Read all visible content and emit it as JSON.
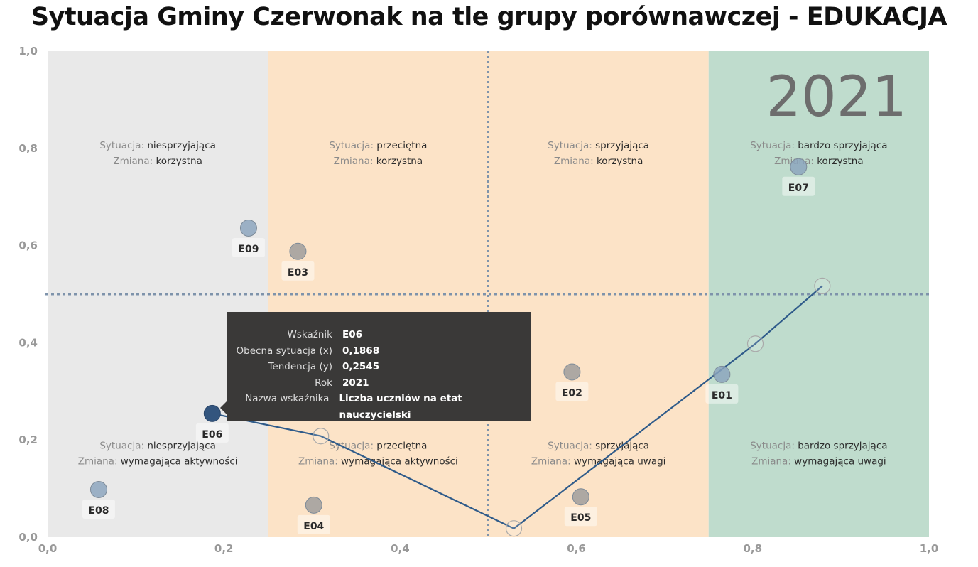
{
  "header": {
    "title": "Sytuacja Gminy Czerwonak na tle grupy porównawczej - EDUKACJA"
  },
  "colors": {
    "zone_unfavorable": "#e9e9e9",
    "zone_average": "#fce3c7",
    "zone_favorable": "#fce3c7",
    "zone_very_favorable": "#bfdccd",
    "line": "#2f5b8a",
    "dot_highlight": "#33557e",
    "dot_blue": "#8aa3bd",
    "dot_gray": "#9b9b9b",
    "divider": "#7e93ab",
    "tooltip_bg": "#3a3938"
  },
  "chart_data": {
    "type": "scatter",
    "title": "Sytuacja Gminy Czerwonak na tle grupy porównawczej - EDUKACJA",
    "xlabel": "",
    "ylabel": "",
    "xlim": [
      0,
      1
    ],
    "ylim": [
      0,
      1
    ],
    "x_ticks": [
      "0,0",
      "0,2",
      "0,4",
      "0,6",
      "0,8",
      "1,0"
    ],
    "y_ticks": [
      "0,0",
      "0,2",
      "0,4",
      "0,6",
      "0,8",
      "1,0"
    ],
    "grid": false,
    "year_label": "2021",
    "zone_bounds_x": [
      0,
      0.25,
      0.5,
      0.75,
      1.0
    ],
    "divider_x": 0.5,
    "divider_y": 0.5,
    "zones": [
      {
        "top": [
          "Sytuacja:",
          "niesprzyjająca",
          "Zmiana:",
          "korzystna"
        ],
        "bottom": [
          "Sytuacja:",
          "niesprzyjająca",
          "Zmiana:",
          "wymagająca aktywności"
        ]
      },
      {
        "top": [
          "Sytuacja:",
          "przeciętna",
          "Zmiana:",
          "korzystna"
        ],
        "bottom": [
          "Sytuacja:",
          "przeciętna",
          "Zmiana:",
          "wymagająca aktywności"
        ]
      },
      {
        "top": [
          "Sytuacja:",
          "sprzyjająca",
          "Zmiana:",
          "korzystna"
        ],
        "bottom": [
          "Sytuacja:",
          "sprzyjająca",
          "Zmiana:",
          "wymagająca uwagi"
        ]
      },
      {
        "top": [
          "Sytuacja:",
          "bardzo sprzyjająca",
          "Zmiana:",
          "korzystna"
        ],
        "bottom": [
          "Sytuacja:",
          "bardzo sprzyjająca",
          "Zmiana:",
          "wymagająca uwagi"
        ]
      }
    ],
    "points": [
      {
        "label": "E06",
        "x": 0.1868,
        "y": 0.2545,
        "style": "highlight"
      },
      {
        "label": "E09",
        "x": 0.228,
        "y": 0.636,
        "style": "blue"
      },
      {
        "label": "E03",
        "x": 0.284,
        "y": 0.588,
        "style": "gray"
      },
      {
        "label": "E08",
        "x": 0.058,
        "y": 0.098,
        "style": "blue"
      },
      {
        "label": "E04",
        "x": 0.302,
        "y": 0.066,
        "style": "gray"
      },
      {
        "label": "E02",
        "x": 0.595,
        "y": 0.34,
        "style": "gray"
      },
      {
        "label": "E05",
        "x": 0.605,
        "y": 0.083,
        "style": "gray"
      },
      {
        "label": "E01",
        "x": 0.765,
        "y": 0.335,
        "style": "blue"
      },
      {
        "label": "E07",
        "x": 0.852,
        "y": 0.762,
        "style": "blue"
      }
    ],
    "trend_line": [
      {
        "x": 0.1868,
        "y": 0.2545
      },
      {
        "x": 0.31,
        "y": 0.208
      },
      {
        "x": 0.529,
        "y": 0.018
      },
      {
        "x": 0.803,
        "y": 0.398
      },
      {
        "x": 0.879,
        "y": 0.517
      }
    ],
    "trend_markers": [
      {
        "x": 0.31,
        "y": 0.208
      },
      {
        "x": 0.529,
        "y": 0.018
      },
      {
        "x": 0.803,
        "y": 0.398
      },
      {
        "x": 0.879,
        "y": 0.517
      }
    ]
  },
  "tooltip": {
    "rows": [
      {
        "label": "Wskaźnik",
        "value": "E06"
      },
      {
        "label": "Obecna sytuacja (x)",
        "value": "0,1868"
      },
      {
        "label": "Tendencja (y)",
        "value": "0,2545"
      },
      {
        "label": "Rok",
        "value": "2021"
      },
      {
        "label": "Nazwa wskaźnika",
        "value": "Liczba uczniów na etat nauczycielski"
      }
    ]
  }
}
